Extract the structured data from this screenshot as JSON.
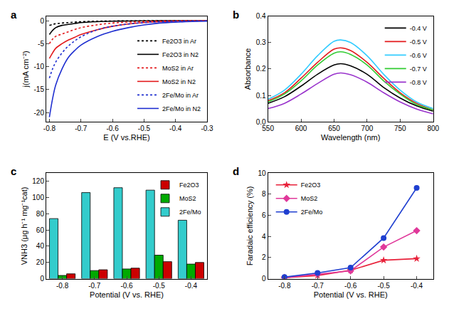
{
  "chart_data": [
    {
      "type": "line",
      "title": "a",
      "x_label": "E (V vs.RHE)",
      "y_label": "j(mA cm⁻²)",
      "x": [
        -0.8,
        -0.79,
        -0.78,
        -0.76,
        -0.74,
        -0.72,
        -0.7,
        -0.65,
        -0.6,
        -0.55,
        -0.5,
        -0.45,
        -0.4,
        -0.3
      ],
      "series": [
        {
          "name": "Fe2O3 in Ar",
          "color": "#000000",
          "line_style": "dot",
          "values": [
            -1.0,
            -0.8,
            -0.65,
            -0.5,
            -0.4,
            -0.3,
            -0.2,
            -0.1,
            -0.05,
            -0.02,
            0,
            0,
            0,
            0
          ]
        },
        {
          "name": "Fe2O3 in N2",
          "color": "#000000",
          "line_style": "solid",
          "values": [
            -3.0,
            -2.1,
            -1.5,
            -1.0,
            -0.8,
            -0.6,
            -0.4,
            -0.2,
            -0.1,
            -0.05,
            -0.02,
            0,
            0,
            0
          ]
        },
        {
          "name": "MoS2 in Ar",
          "color": "#e31a1c",
          "line_style": "dot",
          "values": [
            -5.0,
            -4.0,
            -3.4,
            -2.9,
            -2.4,
            -1.9,
            -1.5,
            -0.9,
            -0.5,
            -0.3,
            -0.15,
            -0.05,
            0,
            0
          ]
        },
        {
          "name": "MoS2 in N2",
          "color": "#e31a1c",
          "line_style": "solid",
          "values": [
            -8.2,
            -7.0,
            -6.0,
            -5.0,
            -4.2,
            -3.6,
            -3.0,
            -2.0,
            -1.2,
            -0.7,
            -0.4,
            -0.2,
            -0.1,
            0
          ]
        },
        {
          "name": "2Fe/Mo in Ar",
          "color": "#1f2fd0",
          "line_style": "dot",
          "values": [
            -12.5,
            -10.5,
            -9.0,
            -7.0,
            -5.5,
            -4.4,
            -3.5,
            -2.0,
            -1.2,
            -0.7,
            -0.4,
            -0.2,
            -0.1,
            0
          ]
        },
        {
          "name": "2Fe/Mo in N2",
          "color": "#1f2fd0",
          "line_style": "solid",
          "values": [
            -21.0,
            -17.0,
            -14.0,
            -10.5,
            -8.0,
            -6.5,
            -5.3,
            -3.5,
            -2.3,
            -1.5,
            -0.9,
            -0.5,
            -0.3,
            -0.1
          ]
        }
      ],
      "xlim": [
        -0.81,
        -0.3
      ],
      "xticks": [
        -0.8,
        -0.7,
        -0.6,
        -0.5,
        -0.4,
        -0.3
      ],
      "ylim": [
        -22,
        1
      ],
      "yticks": [
        -20,
        -15,
        -10,
        -5,
        0
      ],
      "legend": "lower right"
    },
    {
      "type": "line",
      "title": "b",
      "x_label": "Wavelength (nm)",
      "y_label": "Absorbance",
      "x": [
        550,
        575,
        600,
        625,
        650,
        660,
        675,
        700,
        725,
        750,
        775,
        800
      ],
      "series": [
        {
          "name": "-0.4 V",
          "color": "#000000",
          "values": [
            0.07,
            0.095,
            0.135,
            0.18,
            0.215,
            0.22,
            0.212,
            0.18,
            0.13,
            0.09,
            0.06,
            0.04
          ]
        },
        {
          "name": "-0.5 V",
          "color": "#e31a1c",
          "values": [
            0.08,
            0.11,
            0.165,
            0.225,
            0.275,
            0.28,
            0.27,
            0.225,
            0.165,
            0.11,
            0.07,
            0.045
          ]
        },
        {
          "name": "-0.6 V",
          "color": "#33ccff",
          "values": [
            0.085,
            0.12,
            0.18,
            0.25,
            0.305,
            0.31,
            0.3,
            0.25,
            0.18,
            0.12,
            0.075,
            0.05
          ]
        },
        {
          "name": "-0.7 V",
          "color": "#33cc33",
          "values": [
            0.075,
            0.105,
            0.155,
            0.215,
            0.26,
            0.265,
            0.255,
            0.215,
            0.155,
            0.105,
            0.065,
            0.045
          ]
        },
        {
          "name": "-0.8 V",
          "color": "#9933cc",
          "values": [
            0.05,
            0.07,
            0.105,
            0.145,
            0.18,
            0.185,
            0.178,
            0.15,
            0.11,
            0.075,
            0.048,
            0.03
          ]
        }
      ],
      "xlim": [
        550,
        800
      ],
      "xticks": [
        550,
        600,
        650,
        700,
        750,
        800
      ],
      "ylim": [
        0,
        0.4
      ],
      "yticks": [
        {
          "value": 0,
          "label": "0.0"
        },
        0.1,
        0.2,
        0.3,
        0.4
      ],
      "legend": "upper right"
    },
    {
      "type": "bar",
      "title": "c",
      "x_label": "Potential (V vs. RHE)",
      "y_label": "VNH3 (μg h⁻¹ mg⁻¹cat)",
      "categories": [
        "-0.8",
        "-0.7",
        "-0.6",
        "-0.5",
        "-0.4"
      ],
      "series": [
        {
          "name": "Fe2O3",
          "color": "#cc0000",
          "values": [
            6,
            11,
            13,
            21,
            20
          ]
        },
        {
          "name": "MoS2",
          "color": "#00aa00",
          "values": [
            4,
            10,
            12,
            29,
            18
          ]
        },
        {
          "name": "2Fe/Mo",
          "color": "#33cccc",
          "values": [
            74,
            106,
            112,
            109,
            72
          ]
        }
      ],
      "ylim": [
        0,
        130
      ],
      "yticks": [
        0,
        20,
        40,
        60,
        80,
        100,
        120
      ],
      "legend": "upper right"
    },
    {
      "type": "line",
      "title": "d",
      "x_label": "Potential (V vs. RHE)",
      "y_label": "Faradaic efficiency (%)",
      "x": [
        -0.8,
        -0.7,
        -0.6,
        -0.5,
        -0.4
      ],
      "series": [
        {
          "name": "Fe2O3",
          "color": "#e8213a",
          "marker": "star",
          "values": [
            0.1,
            0.3,
            0.8,
            1.75,
            1.9
          ]
        },
        {
          "name": "MoS2",
          "color": "#e0389a",
          "marker": "diamond",
          "values": [
            0.1,
            0.4,
            0.75,
            3.0,
            4.55
          ]
        },
        {
          "name": "2Fe/Mo",
          "color": "#1f3fd0",
          "marker": "circle",
          "values": [
            0.15,
            0.55,
            1.05,
            3.85,
            8.6
          ]
        }
      ],
      "xlim": [
        -0.85,
        -0.35
      ],
      "xticks": [
        -0.8,
        -0.7,
        -0.6,
        -0.5,
        -0.4
      ],
      "ylim": [
        0,
        10
      ],
      "yticks": [
        0,
        2,
        4,
        6,
        8,
        10
      ],
      "legend": "upper left"
    }
  ]
}
